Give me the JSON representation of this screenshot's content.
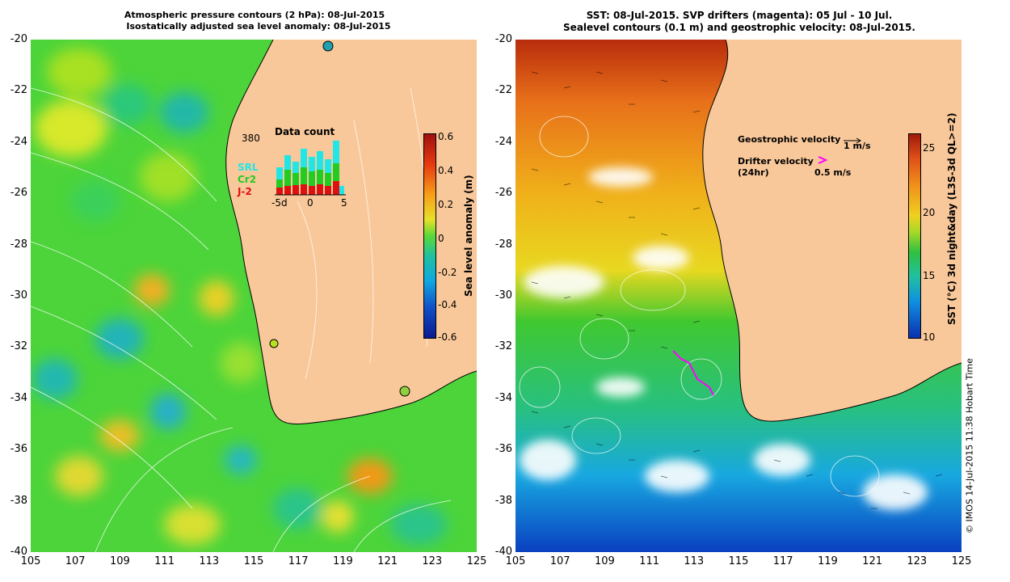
{
  "left": {
    "title_line1": "Atmospheric pressure contours (2 hPa): 08-Jul-2015",
    "title_line2": "Isostatically adjusted sea level anomaly: 08-Jul-2015",
    "colorbar": {
      "label": "Sea level anomaly (m)",
      "ticks": [
        "0.6",
        "0.4",
        "0.2",
        "0",
        "-0.2",
        "-0.4",
        "-0.6"
      ]
    },
    "inset": {
      "title": "Data count",
      "max": "380",
      "x_ticks": [
        "-5d",
        "0",
        "5"
      ],
      "legend": [
        {
          "label": "SRL",
          "color": "#22e6e6"
        },
        {
          "label": "Cr2",
          "color": "#22cc22"
        },
        {
          "label": "J-2",
          "color": "#dd1111"
        }
      ]
    }
  },
  "right": {
    "title_line1": "SST: 08-Jul-2015. SVP drifters (magenta): 05 Jul - 10 Jul.",
    "title_line2": "Sealevel contours (0.1 m) and geostrophic velocity: 08-Jul-2015.",
    "colorbar": {
      "label": "SST (°C) 3d night&day (L3S-3d QL>=2)",
      "ticks": [
        "25",
        "20",
        "15",
        "10"
      ]
    },
    "legend": {
      "geo_label": "Geostrophic velocity",
      "geo_value": "1 m/s",
      "drifter_label": "Drifter velocity",
      "drifter_sub": "(24hr)",
      "drifter_value": "0.5 m/s"
    }
  },
  "axes": {
    "y_ticks": [
      "-20",
      "-22",
      "-24",
      "-26",
      "-28",
      "-30",
      "-32",
      "-34",
      "-36",
      "-38",
      "-40"
    ],
    "x_ticks": [
      "105",
      "107",
      "109",
      "111",
      "113",
      "115",
      "117",
      "119",
      "121",
      "123",
      "125"
    ]
  },
  "credit": "© IMOS 14-Jul-2015 11:38 Hobart Time",
  "colors": {
    "land": "#f9c89a",
    "sla_base": "#4cd43a",
    "sst_warm": "#e87a10",
    "sst_cool": "#1a60e0",
    "drifter": "#ff00ff"
  }
}
